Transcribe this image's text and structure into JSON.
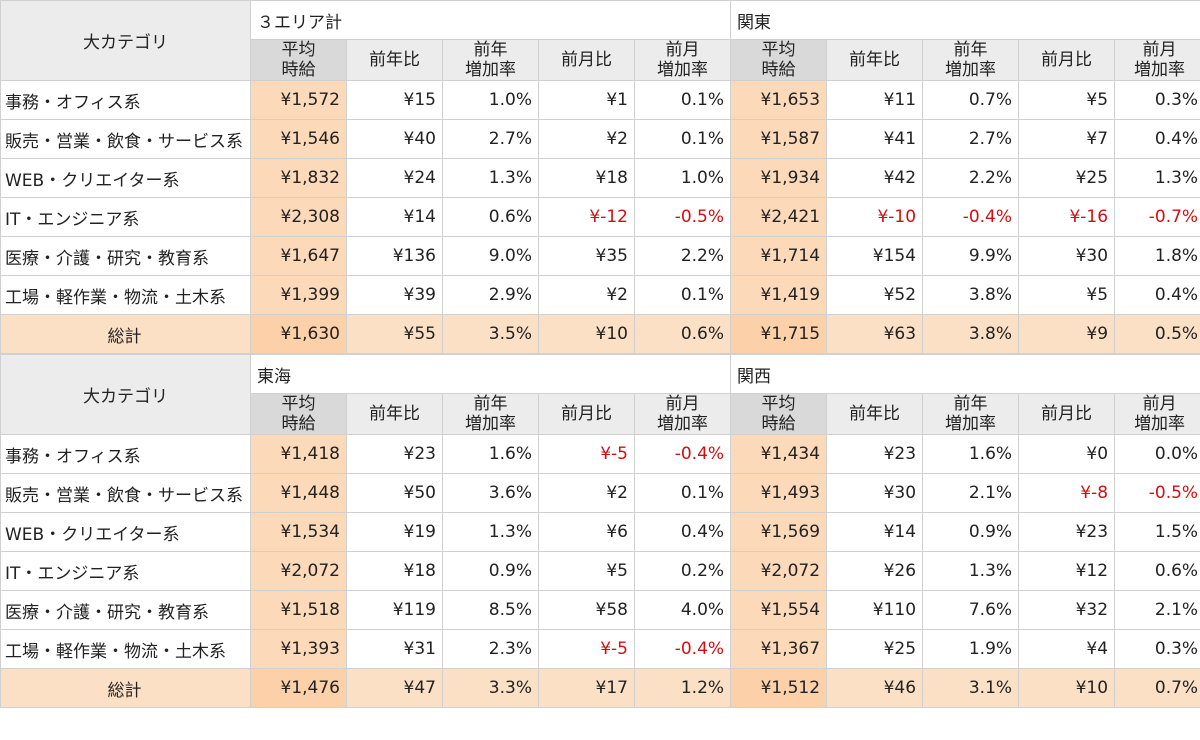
{
  "header": {
    "category_label": "大カテゴリ",
    "col_labels": {
      "avg": [
        "平均",
        "時給"
      ],
      "yoy": "前年比",
      "yoy_rate": [
        "前年",
        "増加率"
      ],
      "mom": "前月比",
      "mom_rate": [
        "前月",
        "増加率"
      ]
    },
    "total_label": "総計"
  },
  "blocks": [
    {
      "left_region": "３エリア計",
      "right_region": "関東",
      "rows": [
        {
          "cat": "事務・オフィス系",
          "l": [
            "¥1,572",
            "¥15",
            "1.0%",
            "¥1",
            "0.1%"
          ],
          "r": [
            "¥1,653",
            "¥11",
            "0.7%",
            "¥5",
            "0.3%"
          ]
        },
        {
          "cat": "販売・営業・飲食・サービス系",
          "l": [
            "¥1,546",
            "¥40",
            "2.7%",
            "¥2",
            "0.1%"
          ],
          "r": [
            "¥1,587",
            "¥41",
            "2.7%",
            "¥7",
            "0.4%"
          ]
        },
        {
          "cat": "WEB・クリエイター系",
          "l": [
            "¥1,832",
            "¥24",
            "1.3%",
            "¥18",
            "1.0%"
          ],
          "r": [
            "¥1,934",
            "¥42",
            "2.2%",
            "¥25",
            "1.3%"
          ]
        },
        {
          "cat": "IT・エンジニア系",
          "l": [
            "¥2,308",
            "¥14",
            "0.6%",
            "¥-12",
            "-0.5%"
          ],
          "r": [
            "¥2,421",
            "¥-10",
            "-0.4%",
            "¥-16",
            "-0.7%"
          ]
        },
        {
          "cat": "医療・介護・研究・教育系",
          "l": [
            "¥1,647",
            "¥136",
            "9.0%",
            "¥35",
            "2.2%"
          ],
          "r": [
            "¥1,714",
            "¥154",
            "9.9%",
            "¥30",
            "1.8%"
          ]
        },
        {
          "cat": "工場・軽作業・物流・土木系",
          "l": [
            "¥1,399",
            "¥39",
            "2.9%",
            "¥2",
            "0.1%"
          ],
          "r": [
            "¥1,419",
            "¥52",
            "3.8%",
            "¥5",
            "0.4%"
          ]
        }
      ],
      "total": {
        "l": [
          "¥1,630",
          "¥55",
          "3.5%",
          "¥10",
          "0.6%"
        ],
        "r": [
          "¥1,715",
          "¥63",
          "3.8%",
          "¥9",
          "0.5%"
        ]
      }
    },
    {
      "left_region": "東海",
      "right_region": "関西",
      "rows": [
        {
          "cat": "事務・オフィス系",
          "l": [
            "¥1,418",
            "¥23",
            "1.6%",
            "¥-5",
            "-0.4%"
          ],
          "r": [
            "¥1,434",
            "¥23",
            "1.6%",
            "¥0",
            "0.0%"
          ]
        },
        {
          "cat": "販売・営業・飲食・サービス系",
          "l": [
            "¥1,448",
            "¥50",
            "3.6%",
            "¥2",
            "0.1%"
          ],
          "r": [
            "¥1,493",
            "¥30",
            "2.1%",
            "¥-8",
            "-0.5%"
          ]
        },
        {
          "cat": "WEB・クリエイター系",
          "l": [
            "¥1,534",
            "¥19",
            "1.3%",
            "¥6",
            "0.4%"
          ],
          "r": [
            "¥1,569",
            "¥14",
            "0.9%",
            "¥23",
            "1.5%"
          ]
        },
        {
          "cat": "IT・エンジニア系",
          "l": [
            "¥2,072",
            "¥18",
            "0.9%",
            "¥5",
            "0.2%"
          ],
          "r": [
            "¥2,072",
            "¥26",
            "1.3%",
            "¥12",
            "0.6%"
          ]
        },
        {
          "cat": "医療・介護・研究・教育系",
          "l": [
            "¥1,518",
            "¥119",
            "8.5%",
            "¥58",
            "4.0%"
          ],
          "r": [
            "¥1,554",
            "¥110",
            "7.6%",
            "¥32",
            "2.1%"
          ]
        },
        {
          "cat": "工場・軽作業・物流・土木系",
          "l": [
            "¥1,393",
            "¥31",
            "2.3%",
            "¥-5",
            "-0.4%"
          ],
          "r": [
            "¥1,367",
            "¥25",
            "1.9%",
            "¥4",
            "0.3%"
          ]
        }
      ],
      "total": {
        "l": [
          "¥1,476",
          "¥47",
          "3.3%",
          "¥17",
          "1.2%"
        ],
        "r": [
          "¥1,512",
          "¥46",
          "3.1%",
          "¥10",
          "0.7%"
        ]
      }
    }
  ],
  "colors": {
    "avg_bg": "#fcd9b8",
    "total_bg": "#fce0c6",
    "negative": "#d01010",
    "header_bg": "#ececec"
  }
}
